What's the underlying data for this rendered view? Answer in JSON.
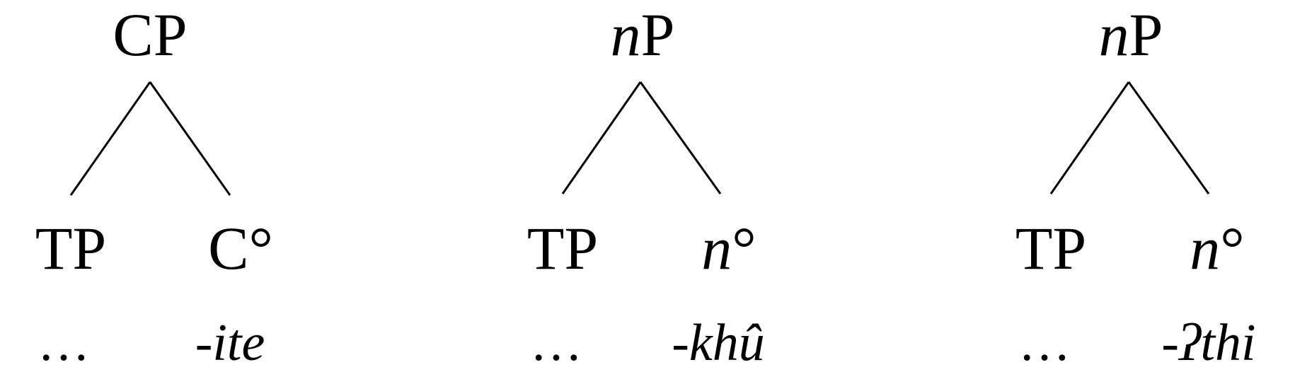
{
  "trees": [
    {
      "root": "CP",
      "left_child": "TP",
      "right_child": "C°",
      "left_leaf": "…",
      "right_leaf": "-ite"
    },
    {
      "root_italic": "n",
      "root_rest": "P",
      "left_child": "TP",
      "right_child_italic": "n",
      "right_child_rest": "°",
      "left_leaf": "…",
      "right_leaf": "-khû"
    },
    {
      "root_italic": "n",
      "root_rest": "P",
      "left_child": "TP",
      "right_child_italic": "n",
      "right_child_rest": "°",
      "left_leaf": "…",
      "right_leaf": "-ʔthi"
    }
  ]
}
